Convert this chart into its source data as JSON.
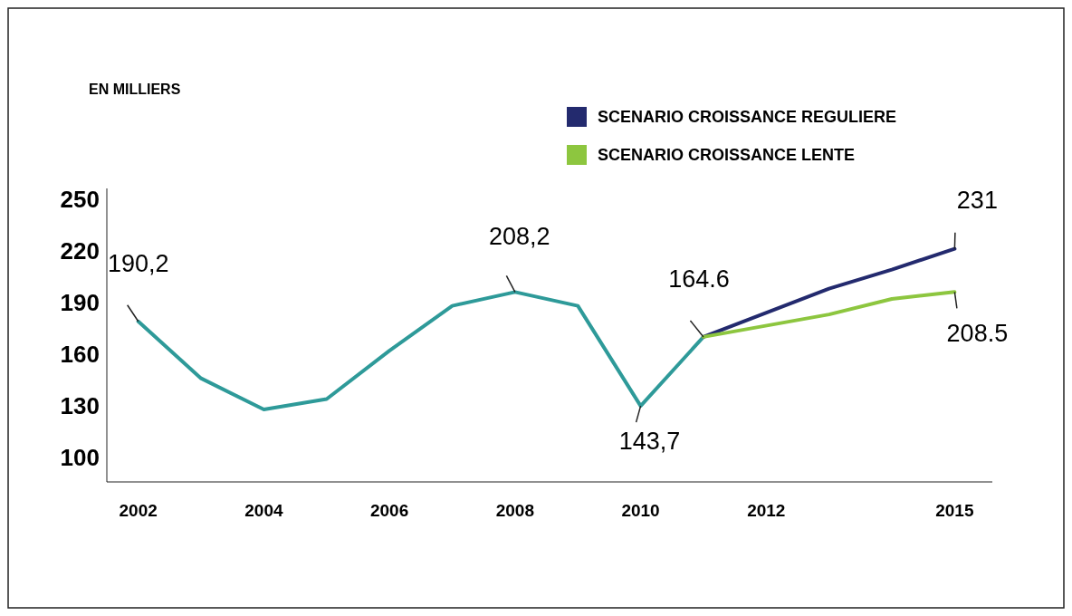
{
  "chart_data": {
    "type": "line",
    "xlim": [
      2001.5,
      2015.6
    ],
    "xticks": [
      2002,
      2004,
      2006,
      2008,
      2010,
      2012,
      2015
    ],
    "ylim": [
      86,
      256
    ],
    "yticks": [
      100,
      130,
      160,
      190,
      220,
      250
    ],
    "grid": false,
    "legend": "top right",
    "marker": "none",
    "line_style": "solid",
    "series": [
      {
        "color": "#2e9a99",
        "x": [
          2002,
          2003,
          2004,
          2005,
          2006,
          2007,
          2008,
          2009,
          2010,
          2011
        ],
        "values": [
          179,
          146,
          128,
          134,
          162,
          188,
          196,
          188,
          130,
          170
        ]
      },
      {
        "name": "SCENARIO CROISSANCE REGULIERE",
        "color": "#232a6e",
        "x": [
          2011,
          2013,
          2014,
          2015
        ],
        "values": [
          170,
          198,
          209,
          221
        ]
      },
      {
        "name": "SCENARIO CROISSANCE LENTE",
        "color": "#8dc63f",
        "x": [
          2011,
          2013,
          2014,
          2015
        ],
        "values": [
          170,
          183,
          192,
          196
        ]
      }
    ],
    "annotations": [
      "EN MILLIERS",
      {
        "text": "190,2",
        "x": 2002,
        "y": 179
      },
      {
        "text": "208,2",
        "x": 2008,
        "y": 196
      },
      {
        "text": "143,7",
        "x": 2010,
        "y": 130
      },
      {
        "text": "164.6",
        "x": 2011,
        "y": 170
      },
      {
        "text": "231",
        "x": 2015,
        "y": 221
      },
      {
        "text": "208.5",
        "x": 2015,
        "y": 196
      }
    ]
  }
}
